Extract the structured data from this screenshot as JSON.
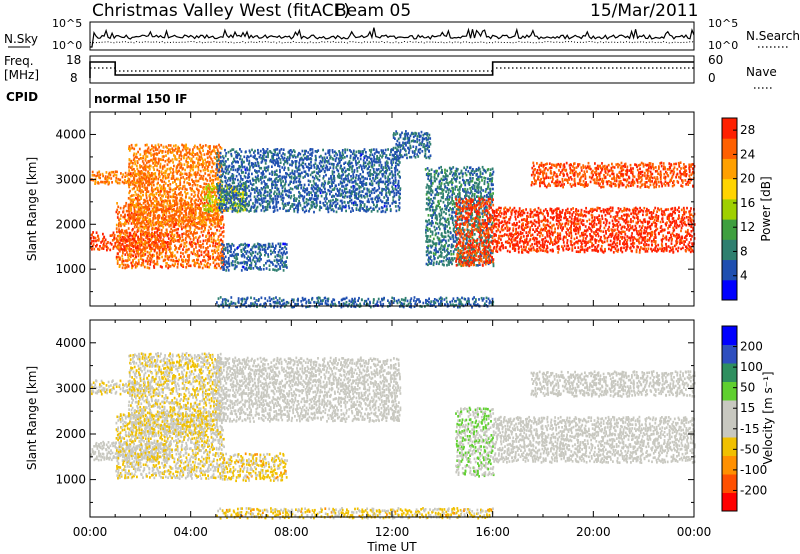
{
  "header": {
    "station": "Christmas Valley West (fitACF)",
    "beam": "Beam 05",
    "date": "15/Mar/2011"
  },
  "top_panels": {
    "nsky_label": "N.Sky",
    "nsky_ticks": [
      "10^5",
      "10^0"
    ],
    "nsearch_label": "N.Search",
    "nsearch_ticks": [
      "10^5",
      "10^0"
    ],
    "freq_label": "Freq.",
    "freq_unit": "[MHz]",
    "freq_ticks": [
      "18",
      "8"
    ],
    "nave_label": "Nave",
    "nave_ticks": [
      "60",
      "0"
    ],
    "cpid_label": "CPID",
    "cpid_value": "normal 150 IF"
  },
  "colors": {
    "power_scale": [
      "#0000ff",
      "#1f4fb0",
      "#2f7f6f",
      "#3f9f3f",
      "#9fd000",
      "#ffd400",
      "#ffa000",
      "#ff6000",
      "#ff2000"
    ],
    "velocity_scale": [
      "#ff0000",
      "#ff5000",
      "#ff9000",
      "#f0c000",
      "#c8c8c0",
      "#c8c8c0",
      "#5fcf2f",
      "#2f8f5f",
      "#2f4fbf",
      "#0000ff"
    ]
  },
  "chart_data": [
    {
      "type": "heatmap",
      "panel": "power",
      "ylabel": "Slant Range [km]",
      "xlabel": "Time UT",
      "xlim": [
        "00:00",
        "24:00"
      ],
      "ylim": [
        180,
        4500
      ],
      "x_tick_labels": [
        "00:00",
        "04:00",
        "08:00",
        "12:00",
        "16:00",
        "20:00",
        "00:00"
      ],
      "y_tick_labels": [
        "1000",
        "2000",
        "3000",
        "4000"
      ],
      "colorbar": {
        "label": "Power [dB]",
        "ticks": [
          "4",
          "8",
          "12",
          "16",
          "20",
          "24",
          "28"
        ],
        "range": [
          0,
          30
        ]
      },
      "features": [
        {
          "t_start": 0.0,
          "t_end": 3.2,
          "r_start": 1450,
          "r_end": 1850,
          "value": 27
        },
        {
          "t_start": 1.0,
          "t_end": 5.3,
          "r_start": 1050,
          "r_end": 2500,
          "value": 25
        },
        {
          "t_start": 1.5,
          "t_end": 5.2,
          "r_start": 2000,
          "r_end": 3800,
          "value": 24
        },
        {
          "t_start": 0.0,
          "t_end": 2.5,
          "r_start": 2900,
          "r_end": 3200,
          "value": 24
        },
        {
          "t_start": 4.5,
          "t_end": 6.2,
          "r_start": 2300,
          "r_end": 2900,
          "value": 16
        },
        {
          "t_start": 5.0,
          "t_end": 12.3,
          "r_start": 2300,
          "r_end": 3700,
          "value": 6
        },
        {
          "t_start": 5.2,
          "t_end": 7.8,
          "r_start": 1000,
          "r_end": 1600,
          "value": 6
        },
        {
          "t_start": 12.0,
          "t_end": 13.5,
          "r_start": 3500,
          "r_end": 4100,
          "value": 6
        },
        {
          "t_start": 13.3,
          "t_end": 16.0,
          "r_start": 1100,
          "r_end": 3300,
          "value": 8
        },
        {
          "t_start": 14.5,
          "t_end": 16.0,
          "r_start": 1100,
          "r_end": 2600,
          "value": 27
        },
        {
          "t_start": 16.0,
          "t_end": 24.0,
          "r_start": 1400,
          "r_end": 2400,
          "value": 28
        },
        {
          "t_start": 17.5,
          "t_end": 24.0,
          "r_start": 2850,
          "r_end": 3400,
          "value": 26
        },
        {
          "t_start": 5.0,
          "t_end": 16.0,
          "r_start": 180,
          "r_end": 400,
          "value": 6
        }
      ]
    },
    {
      "type": "heatmap",
      "panel": "velocity",
      "ylabel": "Slant Range [km]",
      "xlabel": "Time UT",
      "xlim": [
        "00:00",
        "24:00"
      ],
      "ylim": [
        180,
        4500
      ],
      "x_tick_labels": [
        "00:00",
        "04:00",
        "08:00",
        "12:00",
        "16:00",
        "20:00",
        "00:00"
      ],
      "y_tick_labels": [
        "1000",
        "2000",
        "3000",
        "4000"
      ],
      "colorbar": {
        "label": "Velocity [m s⁻¹]",
        "ticks": [
          "200",
          "100",
          "50",
          "15",
          "-15",
          "-50",
          "-100",
          "-200"
        ],
        "range": [
          -250,
          250
        ]
      },
      "features": [
        {
          "t_start": 0.0,
          "t_end": 3.2,
          "r_start": 1450,
          "r_end": 1850,
          "value": 0
        },
        {
          "t_start": 1.0,
          "t_end": 5.3,
          "r_start": 1050,
          "r_end": 2500,
          "value": -40
        },
        {
          "t_start": 1.5,
          "t_end": 5.2,
          "r_start": 2000,
          "r_end": 3800,
          "value": -40
        },
        {
          "t_start": 0.0,
          "t_end": 2.5,
          "r_start": 2900,
          "r_end": 3200,
          "value": -30
        },
        {
          "t_start": 5.0,
          "t_end": 12.3,
          "r_start": 2300,
          "r_end": 3700,
          "value": 0
        },
        {
          "t_start": 5.2,
          "t_end": 7.8,
          "r_start": 1000,
          "r_end": 1600,
          "value": -60
        },
        {
          "t_start": 14.5,
          "t_end": 16.0,
          "r_start": 1100,
          "r_end": 2600,
          "value": 40
        },
        {
          "t_start": 16.0,
          "t_end": 24.0,
          "r_start": 1400,
          "r_end": 2400,
          "value": 0
        },
        {
          "t_start": 17.5,
          "t_end": 24.0,
          "r_start": 2850,
          "r_end": 3400,
          "value": 0
        },
        {
          "t_start": 5.0,
          "t_end": 16.0,
          "r_start": 180,
          "r_end": 400,
          "value": -60
        }
      ]
    }
  ]
}
